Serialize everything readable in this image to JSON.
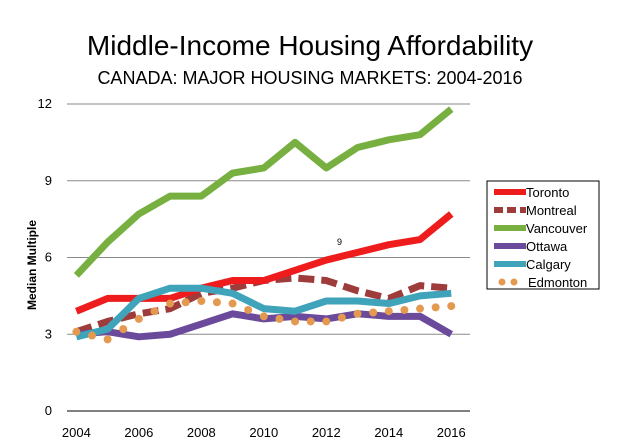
{
  "chart_data": {
    "type": "line",
    "title": "Middle-Income Housing Affordability",
    "subtitle": "CANADA: MAJOR HOUSING MARKETS: 2004-2016",
    "xlabel": "",
    "ylabel": "Median Multiple",
    "x": [
      2004,
      2005,
      2006,
      2007,
      2008,
      2009,
      2010,
      2011,
      2012,
      2013,
      2014,
      2015,
      2016
    ],
    "xticks": [
      "2004",
      "2006",
      "2008",
      "2010",
      "2012",
      "2014",
      "2016"
    ],
    "ylim": [
      0,
      12
    ],
    "yticks": [
      "0",
      "3",
      "6",
      "9",
      "12"
    ],
    "grid": true,
    "legend_position": "right",
    "annotation": "9",
    "series": [
      {
        "name": "Toronto",
        "color": "#ee1c1c",
        "style": "solid",
        "values": [
          3.9,
          4.4,
          4.4,
          4.4,
          4.8,
          5.1,
          5.1,
          5.5,
          5.9,
          6.2,
          6.5,
          6.7,
          7.7
        ]
      },
      {
        "name": "Montreal",
        "color": "#9e3b3b",
        "style": "dashed",
        "values": [
          3.1,
          3.5,
          3.8,
          4.0,
          4.6,
          4.8,
          5.1,
          5.2,
          5.1,
          4.7,
          4.4,
          4.9,
          4.8
        ]
      },
      {
        "name": "Vancouver",
        "color": "#77b040",
        "style": "solid",
        "values": [
          5.3,
          6.6,
          7.7,
          8.4,
          8.4,
          9.3,
          9.5,
          10.5,
          9.5,
          10.3,
          10.6,
          10.8,
          11.8
        ]
      },
      {
        "name": "Ottawa",
        "color": "#6b4a9b",
        "style": "solid",
        "values": [
          3.0,
          3.1,
          2.9,
          3.0,
          3.4,
          3.8,
          3.6,
          3.7,
          3.6,
          3.8,
          3.7,
          3.7,
          3.0
        ]
      },
      {
        "name": "Calgary",
        "color": "#3fa3b9",
        "style": "solid",
        "values": [
          2.9,
          3.2,
          4.4,
          4.8,
          4.8,
          4.6,
          4.0,
          3.9,
          4.3,
          4.3,
          4.2,
          4.5,
          4.6
        ]
      },
      {
        "name": "Edmonton",
        "color": "#e39a50",
        "style": "dotted",
        "values": [
          3.1,
          2.8,
          3.6,
          4.2,
          4.3,
          4.2,
          3.7,
          3.5,
          3.5,
          3.8,
          3.9,
          4.0,
          4.1
        ]
      }
    ]
  }
}
